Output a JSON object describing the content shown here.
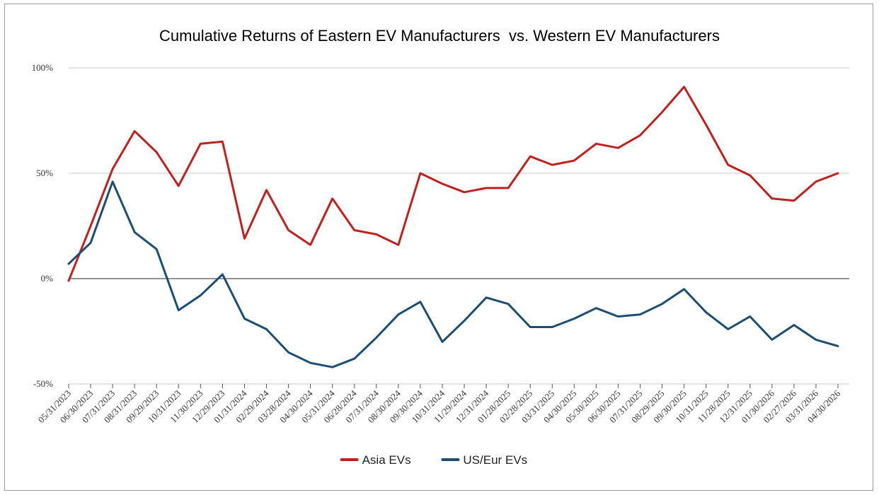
{
  "chart_data": {
    "type": "line",
    "title": "Cumulative Returns of Eastern EV Manufacturers  vs. Western EV Manufacturers",
    "xlabel": "",
    "ylabel": "",
    "ylim": [
      -50,
      100
    ],
    "y_ticks": [
      100,
      50,
      0,
      -50
    ],
    "y_tick_labels": [
      "100%",
      "50%",
      "0%",
      "-50%"
    ],
    "grid": true,
    "legend_position": "bottom",
    "categories": [
      "05/31/2023",
      "06/30/2023",
      "07/31/2023",
      "08/31/2023",
      "09/29/2023",
      "10/31/2023",
      "11/30/2023",
      "12/29/2023",
      "01/31/2024",
      "02/29/2024",
      "03/28/2024",
      "04/30/2024",
      "05/31/2024",
      "06/28/2024",
      "07/31/2024",
      "08/30/2024",
      "09/30/2024",
      "10/31/2024",
      "11/29/2024",
      "12/31/2024",
      "01/28/2025",
      "02/28/2025",
      "03/31/2025",
      "04/30/2025",
      "05/30/2025",
      "06/30/2025",
      "07/31/2025",
      "08/29/2025",
      "09/30/2025",
      "10/31/2025",
      "11/28/2025",
      "12/31/2025",
      "01/30/2026",
      "02/27/2026",
      "03/31/2026",
      "04/30/2026"
    ],
    "series": [
      {
        "name": "Asia EVs",
        "color": "#c0201e",
        "values": [
          -1,
          25,
          52,
          70,
          60,
          44,
          64,
          65,
          19,
          42,
          23,
          16,
          38,
          23,
          21,
          16,
          50,
          45,
          41,
          43,
          43,
          58,
          54,
          56,
          64,
          62,
          68,
          79,
          91,
          73,
          54,
          49,
          38,
          37,
          46,
          50
        ]
      },
      {
        "name": "US/Eur EVs",
        "color": "#1c4e73",
        "values": [
          7,
          17,
          46,
          22,
          14,
          -15,
          -8,
          2,
          -19,
          -24,
          -35,
          -40,
          -42,
          -38,
          -28,
          -17,
          -11,
          -30,
          -20,
          -9,
          -12,
          -23,
          -23,
          -19,
          -14,
          -18,
          -17,
          -12,
          -5,
          -16,
          -24,
          -18,
          -29,
          -22,
          -29,
          -32
        ]
      }
    ]
  }
}
